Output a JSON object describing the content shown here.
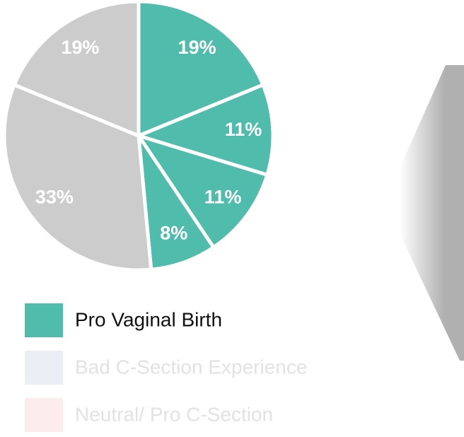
{
  "chart_data": {
    "type": "pie",
    "categories": [
      null,
      null,
      null,
      null,
      null,
      null
    ],
    "values": [
      19,
      11,
      11,
      8,
      33,
      19
    ],
    "value_labels": [
      "19%",
      "11%",
      "11%",
      "8%",
      "33%",
      "19%"
    ],
    "colors": [
      "#4fbcac",
      "#4fbcac",
      "#4fbcac",
      "#4fbcac",
      "#cccccc",
      "#cccccc"
    ],
    "legend": [
      {
        "name": "Pro Vaginal Birth",
        "color": "#4fbcac",
        "text_color": "#111111"
      },
      {
        "name": "Bad C-Section Experience",
        "color": "#ebeef4",
        "text_color": "#e2e2e2"
      },
      {
        "name": "Neutral/ Pro C-Section",
        "color": "#fcecec",
        "text_color": "#e2e2e2"
      }
    ]
  }
}
